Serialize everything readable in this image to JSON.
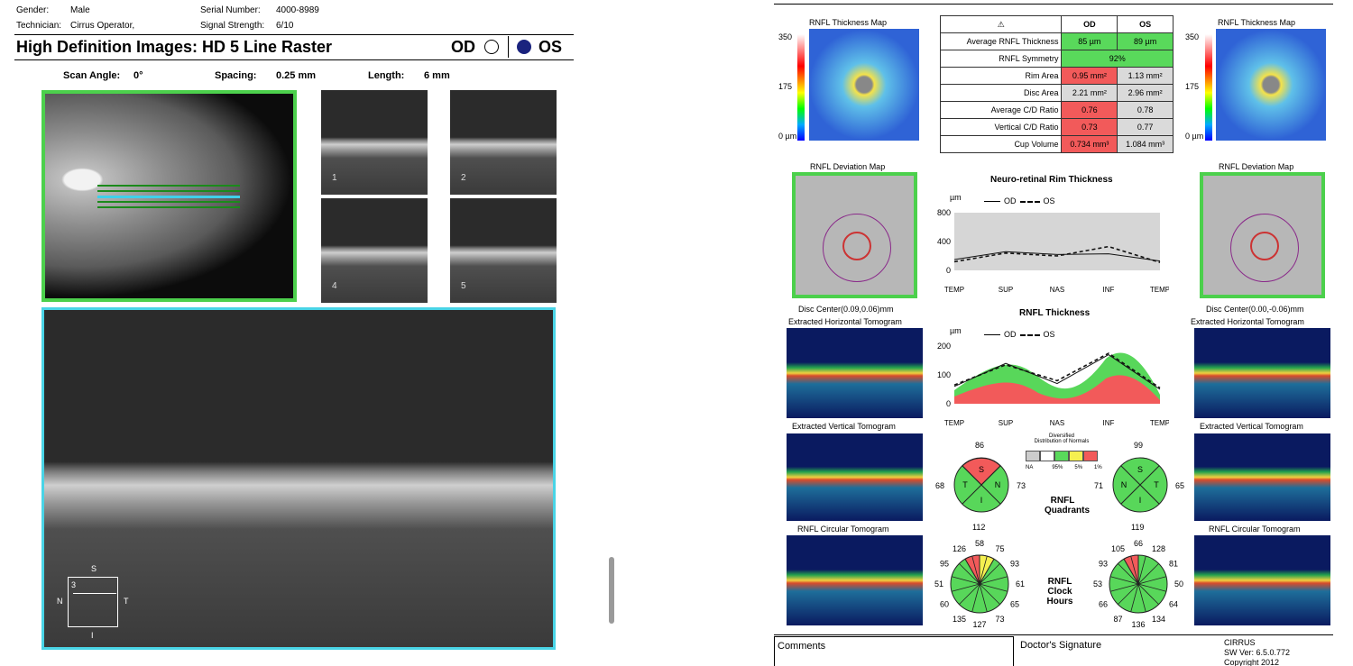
{
  "left": {
    "gender_label": "Gender:",
    "gender_value": "Male",
    "technician_label": "Technician:",
    "technician_value": "Cirrus Operator,",
    "serial_label": "Serial Number:",
    "serial_value": "4000-8989",
    "signal_label": "Signal Strength:",
    "signal_value": "6/10",
    "title": "High Definition Images: HD 5 Line Raster",
    "od": "OD",
    "os": "OS",
    "scan_angle_label": "Scan Angle:",
    "scan_angle": "0°",
    "spacing_label": "Spacing:",
    "spacing": "0.25 mm",
    "length_label": "Length:",
    "length": "6 mm",
    "thumbs": [
      "1",
      "2",
      "4",
      "5"
    ],
    "orientation": {
      "s": "S",
      "i": "I",
      "n": "N",
      "t": "T",
      "num": "3"
    }
  },
  "right": {
    "rnfl_map_title": "RNFL Thickness Map",
    "scale_350": "350",
    "scale_175": "175",
    "scale_0": "0 µm",
    "table": {
      "headers": [
        "OD",
        "OS"
      ],
      "rows": [
        {
          "label": "Average RNFL Thickness",
          "od": "85 µm",
          "os": "89 µm"
        },
        {
          "label": "RNFL Symmetry",
          "od": "92%",
          "os": ""
        },
        {
          "label": "Rim Area",
          "od": "0.95 mm²",
          "os": "1.13 mm²"
        },
        {
          "label": "Disc Area",
          "od": "2.21 mm²",
          "os": "2.96 mm²"
        },
        {
          "label": "Average C/D Ratio",
          "od": "0.76",
          "os": "0.78"
        },
        {
          "label": "Vertical C/D Ratio",
          "od": "0.73",
          "os": "0.77"
        },
        {
          "label": "Cup Volume",
          "od": "0.734 mm³",
          "os": "1.084 mm³"
        }
      ]
    },
    "deviation_title": "RNFL Deviation Map",
    "disc_center_od": "Disc Center(0.09,0.06)mm",
    "disc_center_os": "Disc Center(0.00,-0.06)mm",
    "horiz_tomo": "Extracted Horizontal Tomogram",
    "vert_tomo": "Extracted Vertical Tomogram",
    "circ_tomo": "RNFL Circular Tomogram",
    "rim_title": "Neuro-retinal Rim Thickness",
    "rnfl_title": "RNFL Thickness",
    "unit": "µm",
    "legend_od": "OD",
    "legend_os": "OS",
    "normals_title_1": "Diversified",
    "normals_title_2": "Distribution of Normals",
    "normals_labels": [
      "NA",
      "95%",
      "5%",
      "1%"
    ],
    "quadrants_title": [
      "RNFL",
      "Quadrants"
    ],
    "clock_title": [
      "RNFL",
      "Clock",
      "Hours"
    ],
    "quad_od": {
      "top": "86",
      "left": "68",
      "right": "73",
      "bottom": "112",
      "s": "S",
      "n": "N",
      "i": "I",
      "t": "T"
    },
    "quad_os": {
      "top": "99",
      "left": "71",
      "right": "65",
      "bottom": "119",
      "s": "S",
      "n": "N",
      "i": "I",
      "t": "T"
    },
    "clock_od": [
      "126",
      "58",
      "75",
      "95",
      "93",
      "51",
      "61",
      "60",
      "65",
      "135",
      "127",
      "73"
    ],
    "clock_os": [
      "105",
      "66",
      "128",
      "93",
      "81",
      "53",
      "50",
      "66",
      "64",
      "87",
      "136",
      "134"
    ],
    "comments": "Comments",
    "signature": "Doctor's Signature",
    "cirrus": "CIRRUS",
    "sw_ver": "SW Ver: 6.5.0.772",
    "copyright": "Copyright 2012"
  },
  "chart_data": [
    {
      "type": "line",
      "title": "Neuro-retinal Rim Thickness",
      "ylabel": "µm",
      "ylim": [
        0,
        800
      ],
      "yticks": [
        0,
        400,
        800
      ],
      "x": [
        "TEMP",
        "SUP",
        "NAS",
        "INF",
        "TEMP"
      ],
      "series": [
        {
          "name": "OD",
          "values": [
            150,
            260,
            220,
            230,
            130
          ]
        },
        {
          "name": "OS",
          "values": [
            120,
            240,
            200,
            330,
            110
          ]
        }
      ]
    },
    {
      "type": "line",
      "title": "RNFL Thickness",
      "ylabel": "µm",
      "ylim": [
        0,
        200
      ],
      "yticks": [
        0,
        100,
        200
      ],
      "x": [
        "TEMP",
        "SUP",
        "NAS",
        "INF",
        "TEMP"
      ],
      "series": [
        {
          "name": "OD",
          "values": [
            60,
            140,
            70,
            170,
            50
          ]
        },
        {
          "name": "OS",
          "values": [
            65,
            135,
            80,
            175,
            55
          ]
        }
      ]
    }
  ]
}
